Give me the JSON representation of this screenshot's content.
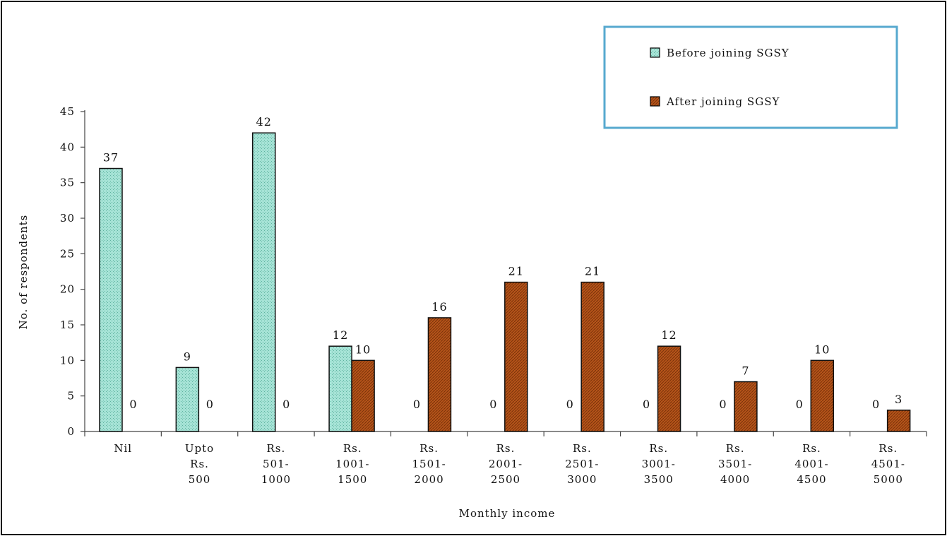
{
  "chart_data": {
    "type": "bar",
    "title": "",
    "xlabel": "Monthly income",
    "ylabel": "No. of respondents",
    "ylim": [
      0,
      45
    ],
    "yticks": [
      0,
      5,
      10,
      15,
      20,
      25,
      30,
      35,
      40,
      45
    ],
    "grid": false,
    "legend_position": "top-right",
    "categories": [
      [
        "Nil"
      ],
      [
        "Upto",
        "Rs.",
        "500"
      ],
      [
        "Rs.",
        "501-",
        "1000"
      ],
      [
        "Rs.",
        "1001-",
        "1500"
      ],
      [
        "Rs.",
        "1501-",
        "2000"
      ],
      [
        "Rs.",
        "2001-",
        "2500"
      ],
      [
        "Rs.",
        "2501-",
        "3000"
      ],
      [
        "Rs.",
        "3001-",
        "3500"
      ],
      [
        "Rs.",
        "3501-",
        "4000"
      ],
      [
        "Rs.",
        "4001-",
        "4500"
      ],
      [
        "Rs.",
        "4501-",
        "5000"
      ]
    ],
    "series": [
      {
        "name": "Before joining SGSY",
        "color": "#a6e3d6",
        "values": [
          37,
          9,
          42,
          12,
          0,
          0,
          0,
          0,
          0,
          0,
          0
        ]
      },
      {
        "name": "After joining SGSY",
        "color": "#b5541a",
        "values": [
          0,
          0,
          0,
          10,
          16,
          21,
          21,
          12,
          7,
          10,
          3
        ]
      }
    ]
  }
}
